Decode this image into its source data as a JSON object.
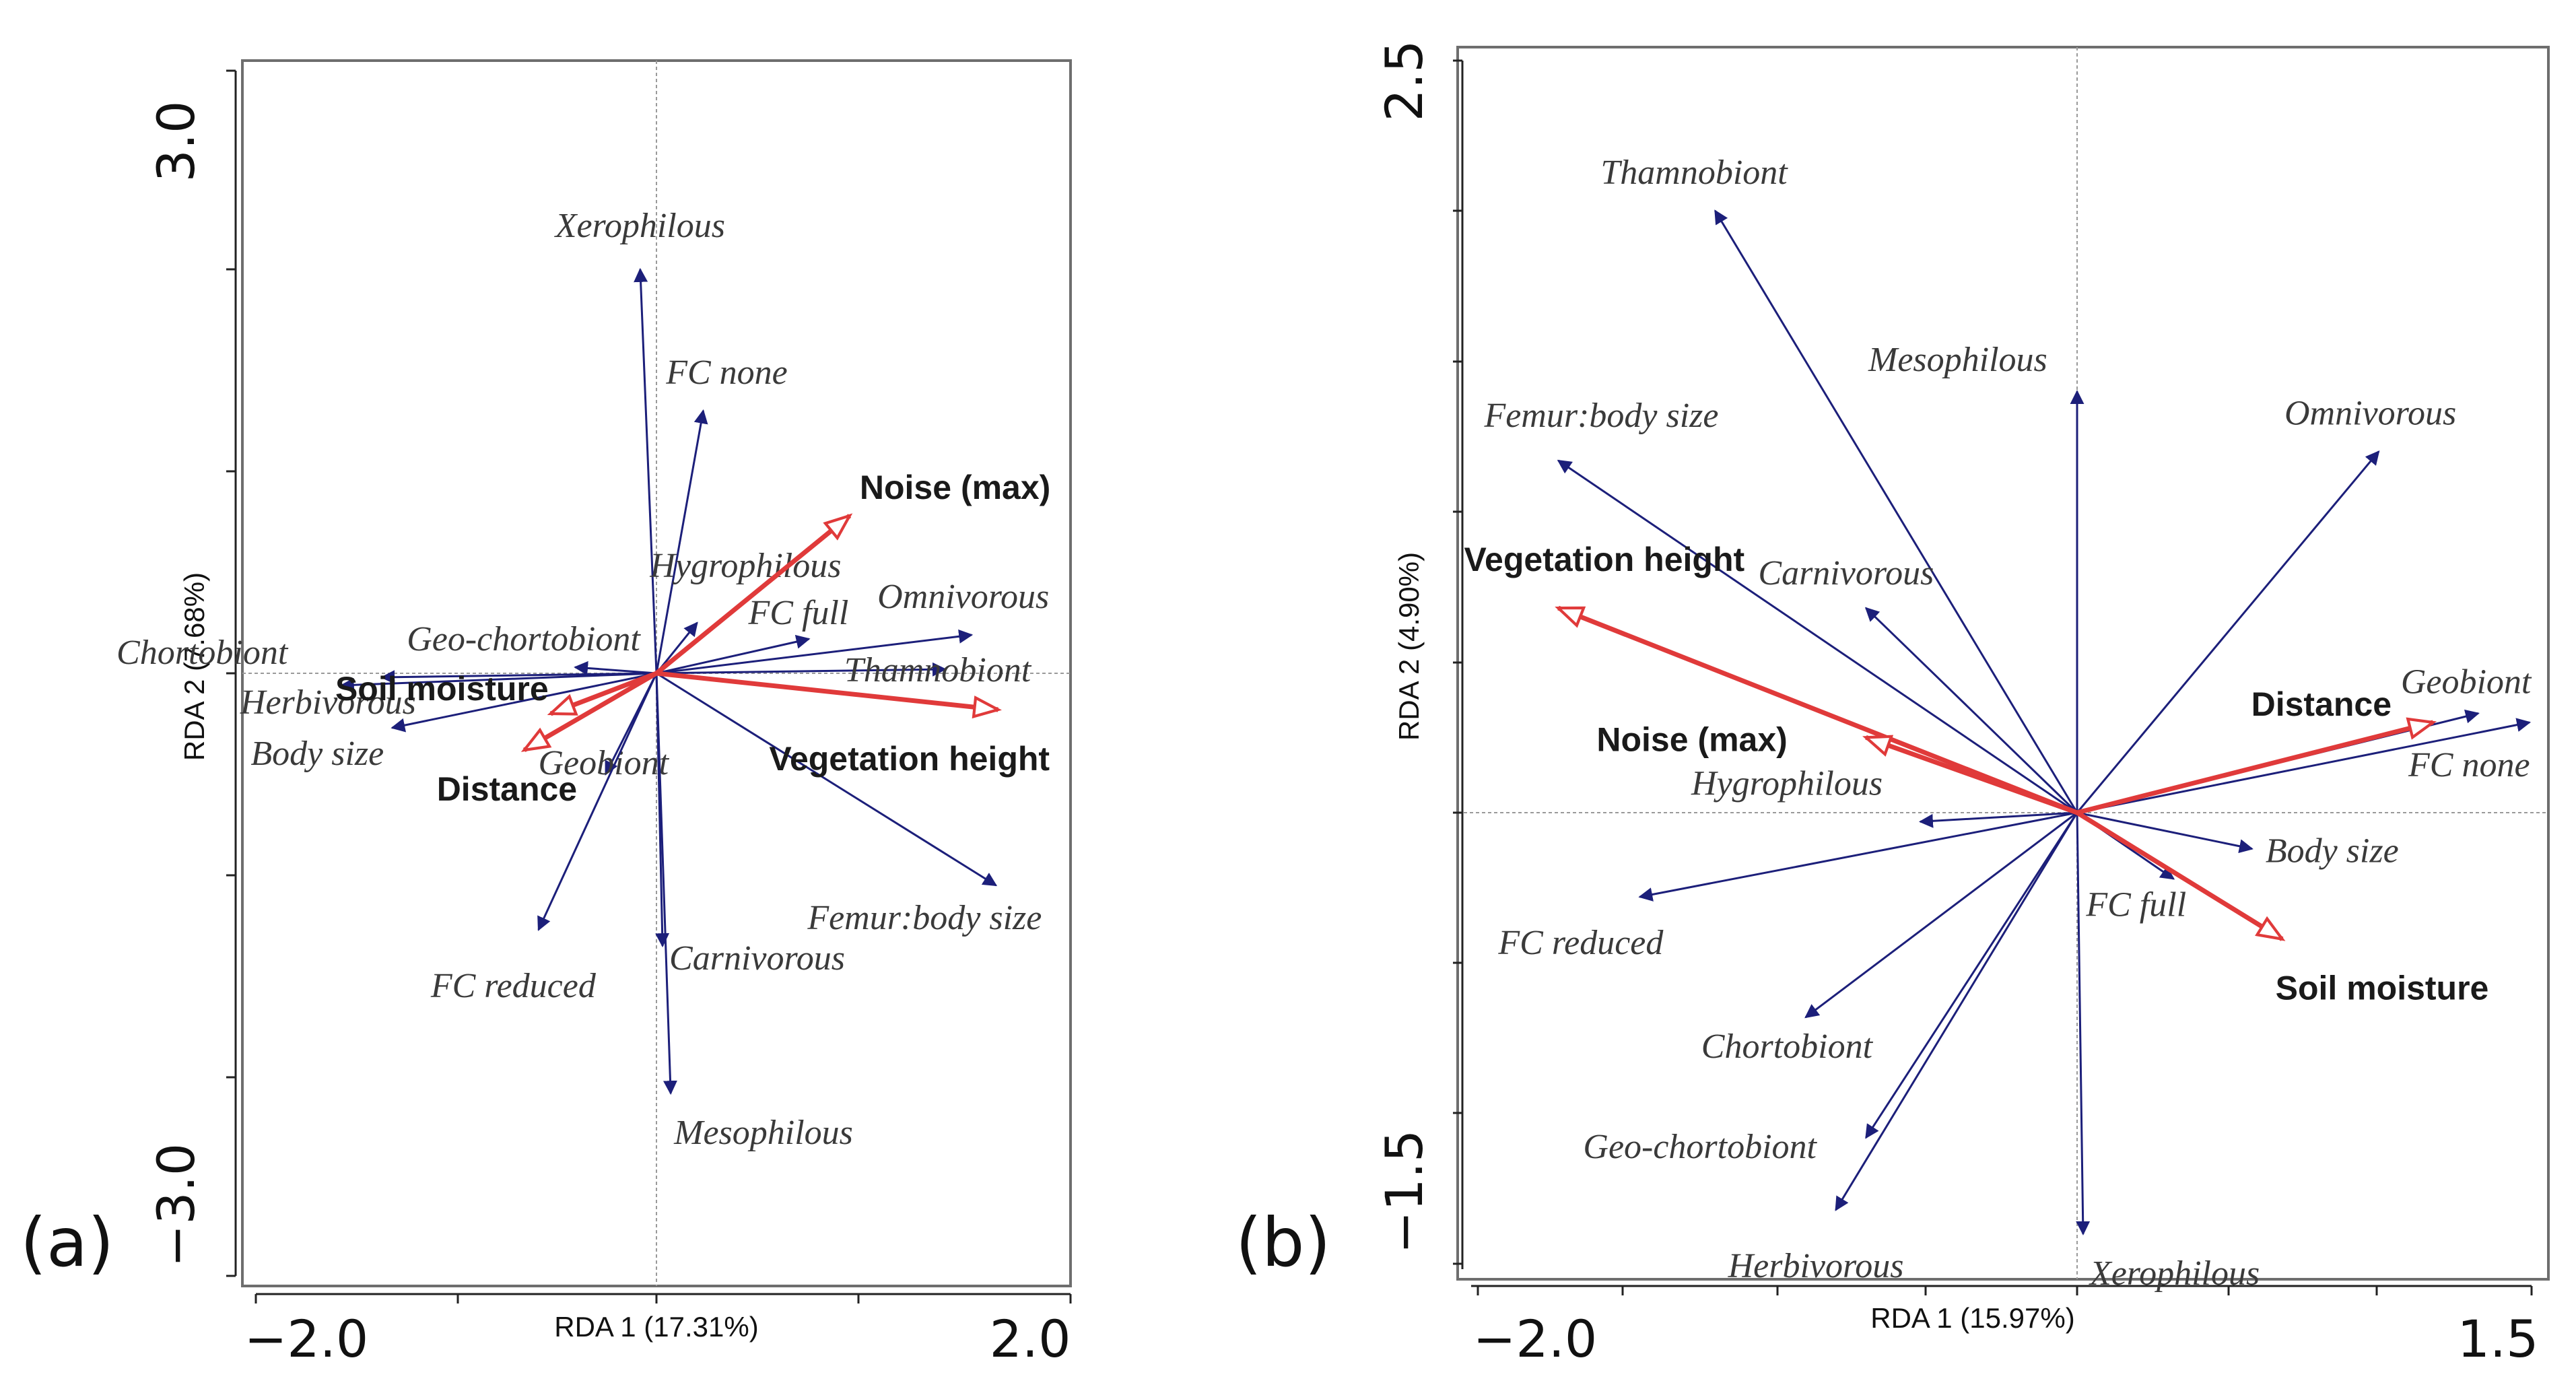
{
  "chart_data": [
    {
      "type": "biplot",
      "panel_label": "(a)",
      "xlabel": "RDA 1 (17.31%)",
      "ylabel": "RDA 2 (7.68%)",
      "xlim": [
        -2.0,
        2.0
      ],
      "ylim": [
        -3.0,
        3.0
      ],
      "x_tick_labels": [
        "−2.0",
        "2.0"
      ],
      "y_tick_labels": [
        "3.0",
        "−3.0"
      ],
      "species": [
        {
          "name": "Xerophilous",
          "x": -0.08,
          "y": 2.0
        },
        {
          "name": "FC none",
          "x": 0.23,
          "y": 1.3
        },
        {
          "name": "Hygrophilous",
          "x": 0.2,
          "y": 0.25
        },
        {
          "name": "Geo-chortobiont",
          "x": -0.4,
          "y": 0.03
        },
        {
          "name": "Chortobiont",
          "x": -1.35,
          "y": -0.02
        },
        {
          "name": "Herbivorous",
          "x": -1.55,
          "y": -0.06
        },
        {
          "name": "Body size",
          "x": -1.3,
          "y": -0.27
        },
        {
          "name": "FC full",
          "x": 0.75,
          "y": 0.17
        },
        {
          "name": "Omnivorous",
          "x": 1.55,
          "y": 0.19
        },
        {
          "name": "Thamnobiont",
          "x": 1.42,
          "y": 0.02
        },
        {
          "name": "Geobiont",
          "x": -0.25,
          "y": -0.5
        },
        {
          "name": "FC reduced",
          "x": -0.58,
          "y": -1.27
        },
        {
          "name": "Carnivorous",
          "x": 0.03,
          "y": -1.35
        },
        {
          "name": "Femur:body size",
          "x": 1.67,
          "y": -1.05
        },
        {
          "name": "Mesophilous",
          "x": 0.07,
          "y": -2.08
        }
      ],
      "environment": [
        {
          "name": "Noise (max)",
          "x": 0.95,
          "y": 0.78
        },
        {
          "name": "Vegetation height",
          "x": 1.68,
          "y": -0.18
        },
        {
          "name": "Soil moisture",
          "x": -0.52,
          "y": -0.2
        },
        {
          "name": "Distance",
          "x": -0.65,
          "y": -0.38
        }
      ]
    },
    {
      "type": "biplot",
      "panel_label": "(b)",
      "xlabel": "RDA 1 (15.97%)",
      "ylabel": "RDA 2 (4.90%)",
      "xlim": [
        -2.0,
        1.5
      ],
      "ylim": [
        -1.5,
        2.5
      ],
      "x_tick_labels": [
        "−2.0",
        "1.5"
      ],
      "y_tick_labels": [
        "2.5",
        "−1.5"
      ],
      "species": [
        {
          "name": "Thamnobiont",
          "x": -1.2,
          "y": 2.0
        },
        {
          "name": "Mesophilous",
          "x": 0.0,
          "y": 1.4
        },
        {
          "name": "Femur:body size",
          "x": -1.72,
          "y": 1.17
        },
        {
          "name": "Omnivorous",
          "x": 1.0,
          "y": 1.2
        },
        {
          "name": "Carnivorous",
          "x": -0.7,
          "y": 0.68
        },
        {
          "name": "Geobiont",
          "x": 1.33,
          "y": 0.33
        },
        {
          "name": "FC none",
          "x": 1.5,
          "y": 0.3
        },
        {
          "name": "Hygrophilous",
          "x": -0.52,
          "y": -0.03
        },
        {
          "name": "Body size",
          "x": 0.58,
          "y": -0.12
        },
        {
          "name": "FC full",
          "x": 0.32,
          "y": -0.22
        },
        {
          "name": "FC reduced",
          "x": -1.45,
          "y": -0.28
        },
        {
          "name": "Chortobiont",
          "x": -0.9,
          "y": -0.68
        },
        {
          "name": "Geo-chortobiont",
          "x": -0.7,
          "y": -1.08
        },
        {
          "name": "Herbivorous",
          "x": -0.8,
          "y": -1.32
        },
        {
          "name": "Xerophilous",
          "x": 0.02,
          "y": -1.4
        }
      ],
      "environment": [
        {
          "name": "Vegetation height",
          "x": -1.72,
          "y": 0.68
        },
        {
          "name": "Noise (max)",
          "x": -0.7,
          "y": 0.25
        },
        {
          "name": "Distance",
          "x": 1.18,
          "y": 0.3
        },
        {
          "name": "Soil moisture",
          "x": 0.68,
          "y": -0.42
        }
      ]
    }
  ]
}
